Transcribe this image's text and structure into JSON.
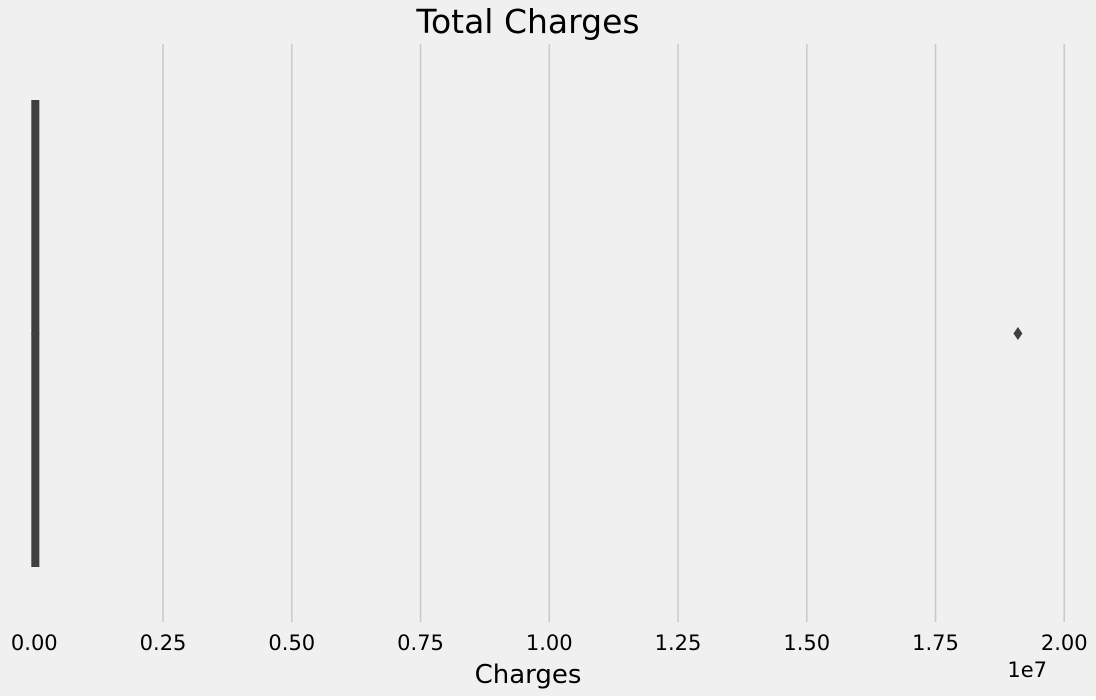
{
  "chart_data": {
    "type": "boxplot",
    "orientation": "horizontal",
    "title": "Total Charges",
    "xlabel": "Charges",
    "ylabel": "",
    "axis_offset_label": "1e7",
    "x_scale_multiplier": 10000000,
    "xlim": [
      -0.02,
      2.015
    ],
    "x_ticks": [
      0,
      0.25,
      0.5,
      0.75,
      1.0,
      1.25,
      1.5,
      1.75,
      2.0
    ],
    "x_tick_labels": [
      "0.00",
      "0.25",
      "0.50",
      "0.75",
      "1.00",
      "1.25",
      "1.50",
      "1.75",
      "2.00"
    ],
    "grid": "vertical",
    "box": {
      "whisker_low": 0,
      "q1": 0,
      "median": 0,
      "q3": 0.002,
      "whisker_high": 0.004
    },
    "outliers": [
      1.91
    ],
    "colors": {
      "background": "#f0f0f0",
      "grid": "#cbcbcb",
      "box": "#3f3f3f"
    }
  }
}
